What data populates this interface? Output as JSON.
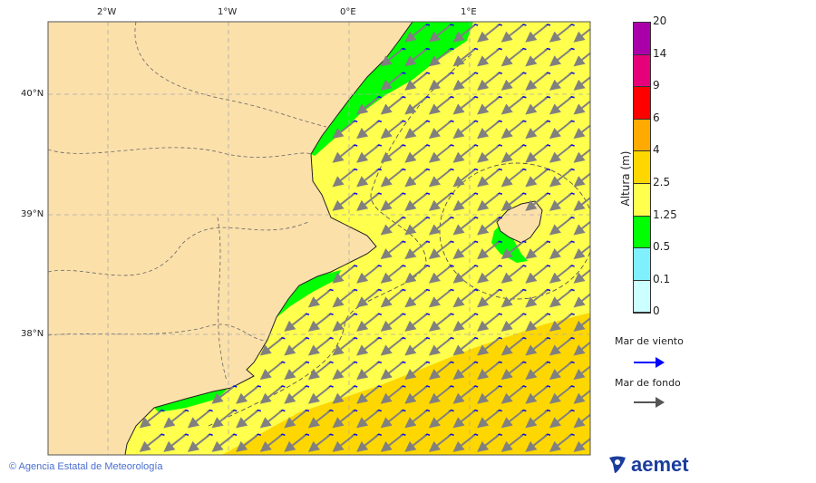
{
  "map": {
    "lon_labels": [
      "2°W",
      "1°W",
      "0°E",
      "1°E"
    ],
    "lat_labels": [
      "40°N",
      "39°N",
      "38°N"
    ],
    "colors": {
      "land": "#FCE0AA",
      "sea_low": "#FFFF4D",
      "sea_mid": "#FFD700",
      "green": "#00FF00",
      "wind_arrow": "#1010E0",
      "swell_arrow": "#808080"
    }
  },
  "colorbar": {
    "title": "Altura (m)",
    "ticks": [
      "20",
      "14",
      "9",
      "6",
      "4",
      "2.5",
      "1.25",
      "0.5",
      "0.1",
      "0"
    ],
    "colors": [
      "#AA00AA",
      "#E6007A",
      "#FF0000",
      "#FFAA00",
      "#FFD700",
      "#FFFF4D",
      "#00FF00",
      "#80F0FF",
      "#CCFFFF"
    ]
  },
  "legend": {
    "wind_sea": "Mar de viento",
    "swell": "Mar de fondo"
  },
  "footer": {
    "copyright": "© Agencia Estatal de Meteorología",
    "logo": "aemet"
  }
}
